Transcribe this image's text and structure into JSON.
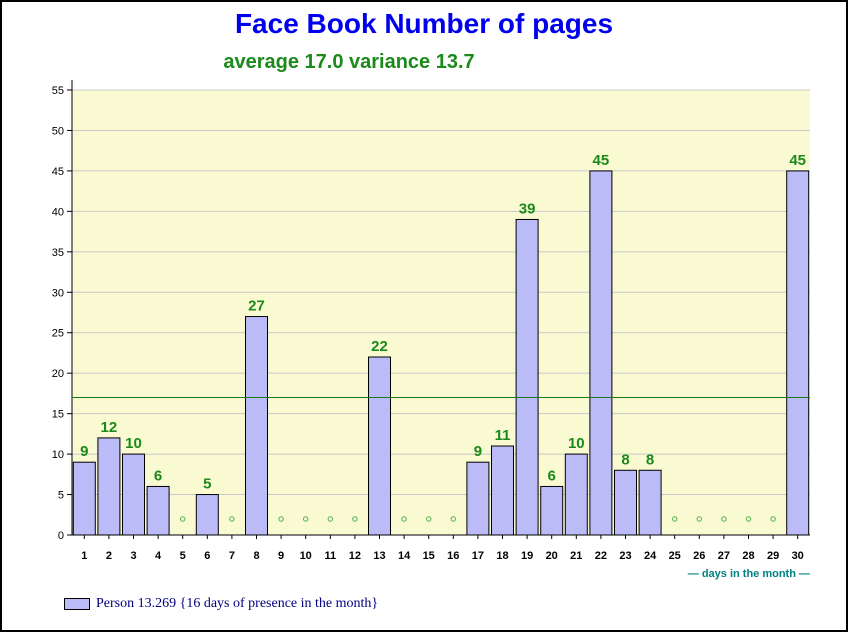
{
  "page": {
    "title": "Face Book Number of pages",
    "subtitle": "average 17.0 variance 13.7"
  },
  "chart_data": {
    "type": "bar",
    "title": "Face Book Number of pages",
    "subtitle": "average 17.0 variance 13.7",
    "xlabel": "— days in the month —",
    "ylabel": "",
    "ylim": [
      0,
      55
    ],
    "yticks": [
      0,
      5,
      10,
      15,
      20,
      25,
      30,
      35,
      40,
      45,
      50,
      55
    ],
    "categories": [
      "1",
      "2",
      "3",
      "4",
      "5",
      "6",
      "7",
      "8",
      "9",
      "10",
      "11",
      "12",
      "13",
      "14",
      "15",
      "16",
      "17",
      "18",
      "19",
      "20",
      "21",
      "22",
      "23",
      "24",
      "25",
      "26",
      "27",
      "28",
      "29",
      "30"
    ],
    "values": [
      9,
      12,
      10,
      6,
      null,
      5,
      null,
      27,
      null,
      null,
      null,
      null,
      22,
      null,
      null,
      null,
      9,
      11,
      39,
      6,
      10,
      45,
      8,
      8,
      null,
      null,
      null,
      null,
      null,
      45
    ],
    "average_line": 17.0,
    "grid": true,
    "legend": {
      "placement": "bottom-left",
      "entries": [
        {
          "name": "Person 13.269 {16 days of presence in the month}"
        }
      ]
    },
    "colors": {
      "bar_fill": "#bbbbf7",
      "bar_stroke": "#000000",
      "plot_background": "#fafad2",
      "grid": "#c8c8c8",
      "average_line": "#1a7a1a",
      "value_label": "#1a8a1a",
      "absent_marker": "#4caf50",
      "xlabel": "#008080",
      "title": "#0000ee",
      "subtitle": "#1a8a1a"
    }
  }
}
